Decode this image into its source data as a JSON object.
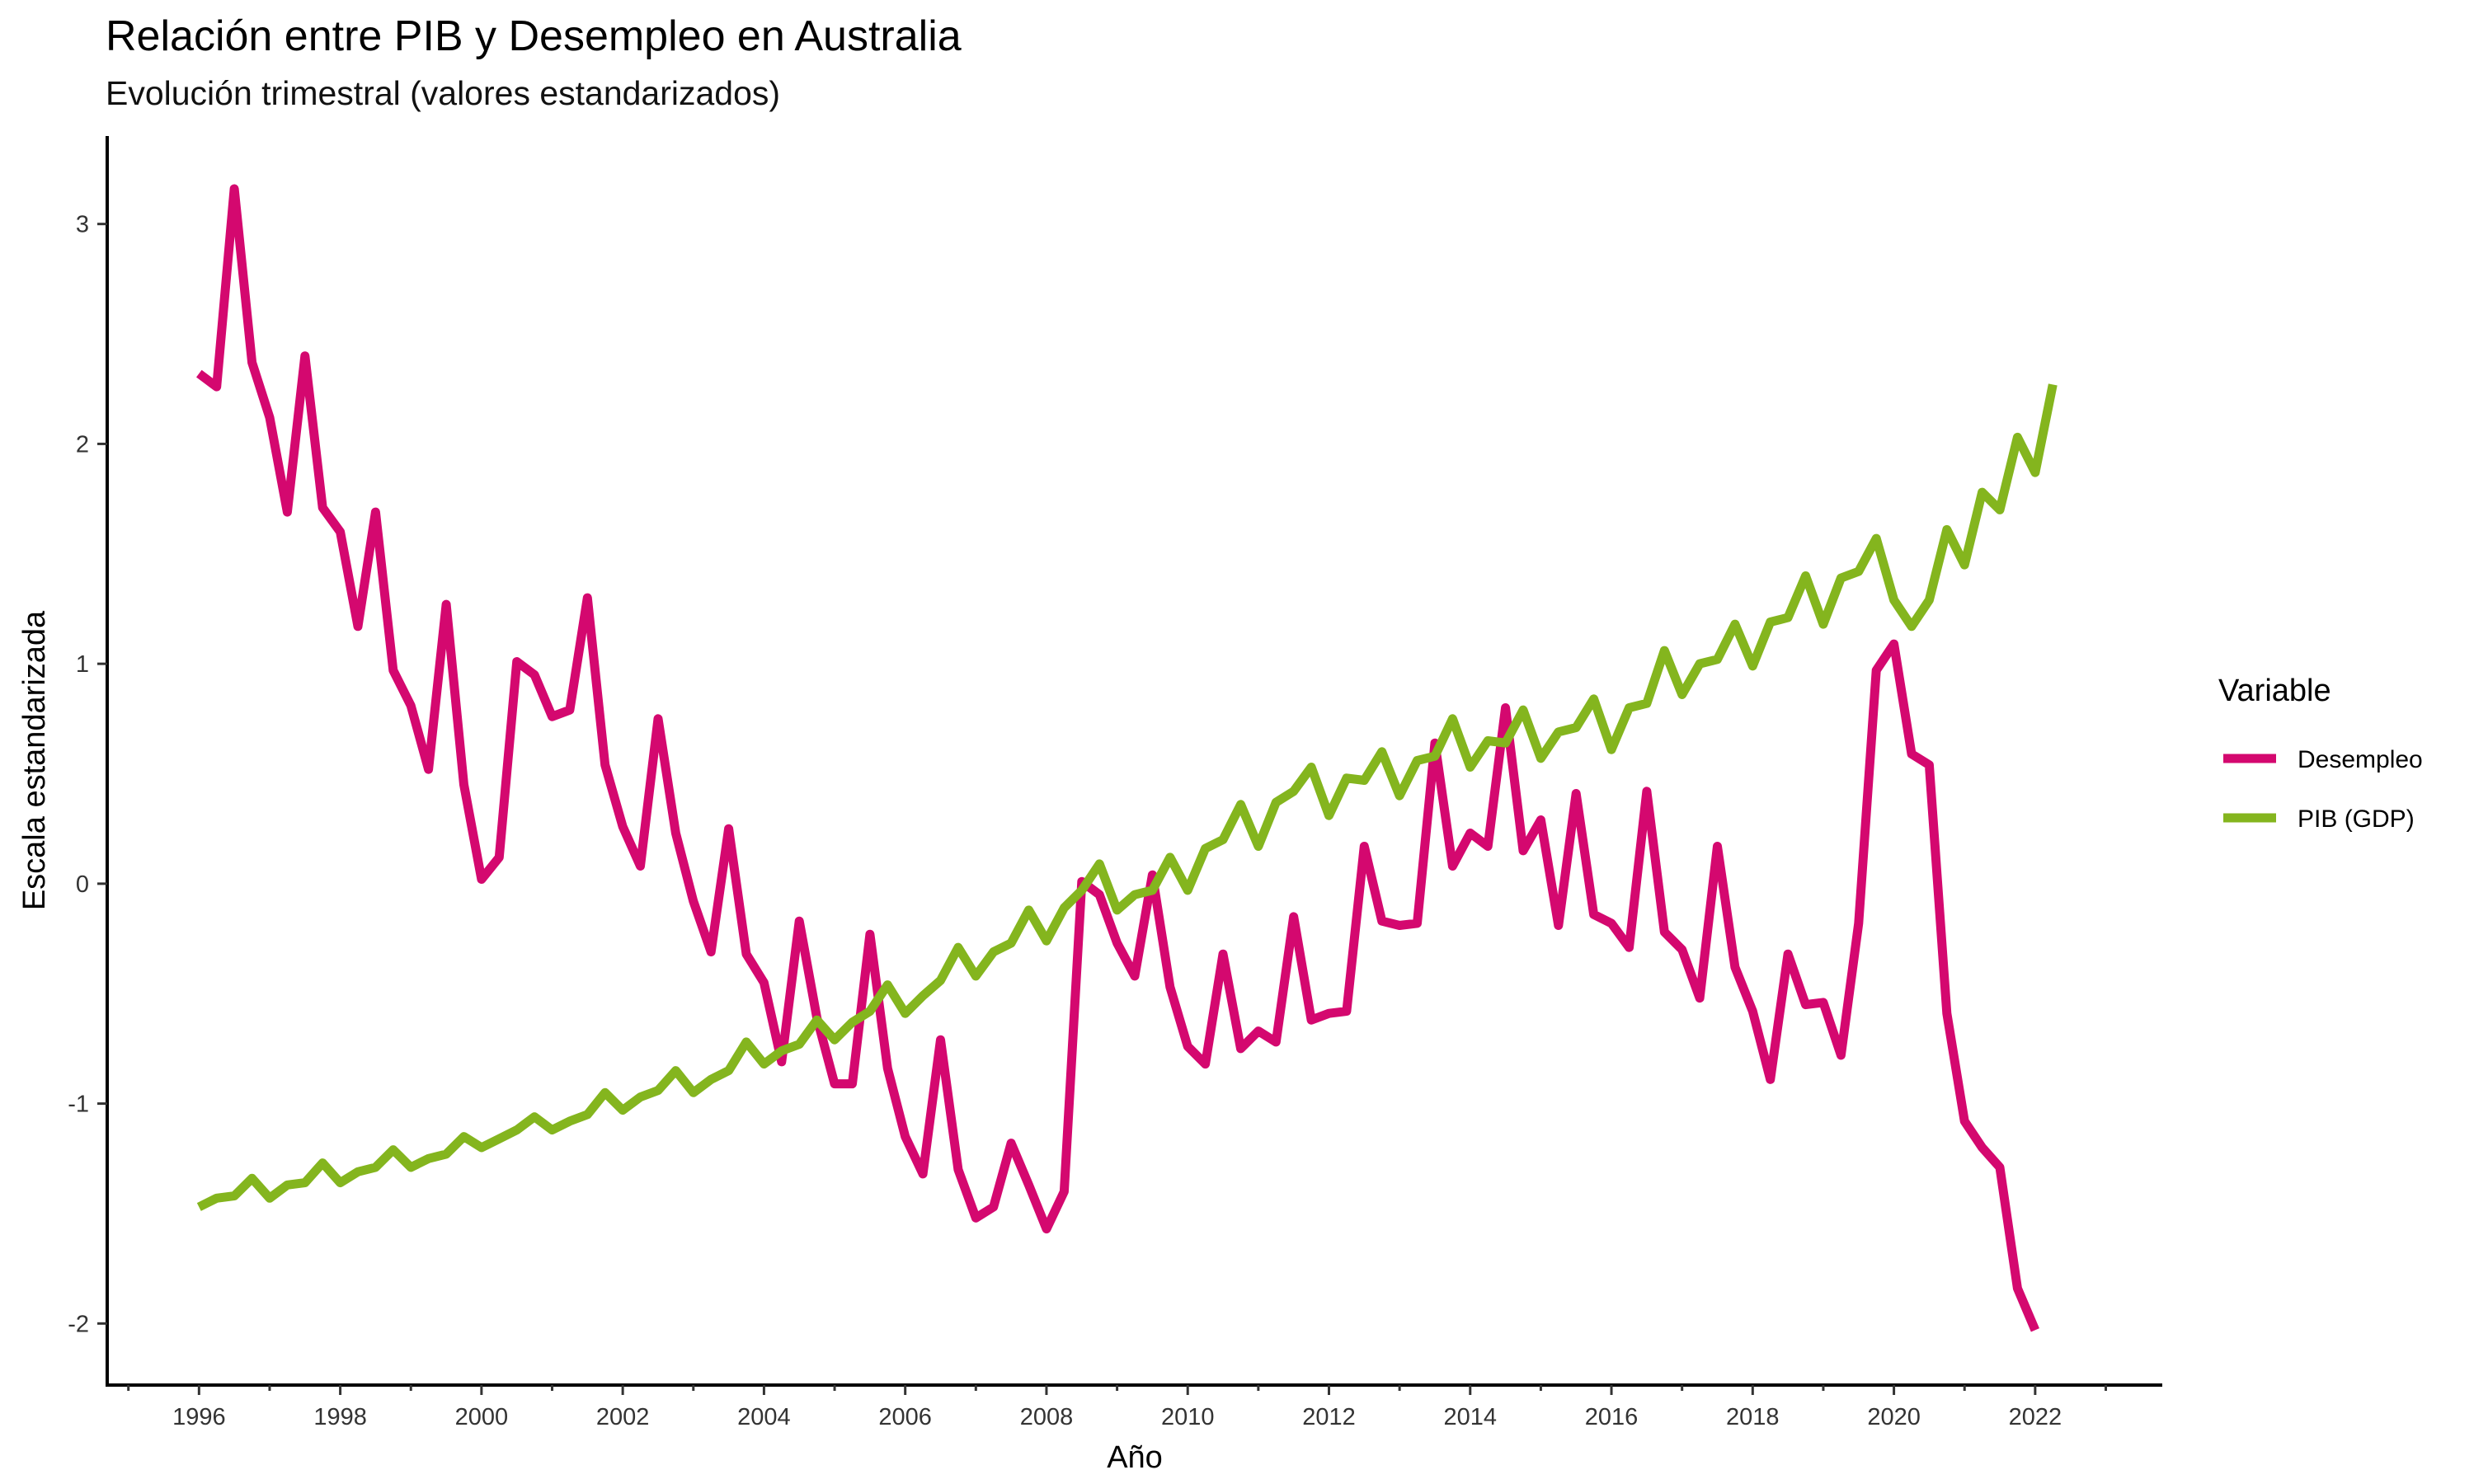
{
  "chart_data": {
    "type": "line",
    "title": "Relación entre PIB y Desempleo en Australia",
    "subtitle": "Evolución trimestral (valores estandarizados)",
    "xlabel": "Año",
    "ylabel": "Escala estandarizada",
    "xlim": [
      1994.7,
      2023.8
    ],
    "ylim": [
      -2.28,
      3.4
    ],
    "x_ticks": [
      1996,
      1998,
      2000,
      2002,
      2004,
      2006,
      2008,
      2010,
      2012,
      2014,
      2016,
      2018,
      2020,
      2022
    ],
    "y_ticks": [
      3,
      2,
      1,
      0,
      -1,
      -2
    ],
    "grid": false,
    "legend": {
      "title": "Variable",
      "position": "right"
    },
    "series": [
      {
        "name": "Desempleo",
        "color": "#d4086f",
        "start_year": 1996,
        "step": 0.25,
        "values": [
          2.32,
          2.26,
          3.16,
          2.37,
          2.12,
          1.69,
          2.4,
          1.71,
          1.6,
          1.17,
          1.69,
          0.97,
          0.81,
          0.52,
          1.27,
          0.45,
          0.02,
          0.12,
          1.01,
          0.95,
          0.76,
          0.79,
          1.3,
          0.54,
          0.26,
          0.08,
          0.75,
          0.23,
          -0.08,
          -0.31,
          0.25,
          -0.32,
          -0.45,
          -0.81,
          -0.17,
          -0.61,
          -0.91,
          -0.91,
          -0.23,
          -0.84,
          -1.15,
          -1.32,
          -0.71,
          -1.3,
          -1.52,
          -1.47,
          -1.18,
          -1.37,
          -1.57,
          -1.4,
          0.01,
          -0.05,
          -0.27,
          -0.42,
          0.04,
          -0.47,
          -0.74,
          -0.82,
          -0.32,
          -0.75,
          -0.67,
          -0.72,
          -0.15,
          -0.62,
          -0.59,
          -0.58,
          0.17,
          -0.17,
          -0.19,
          -0.18,
          0.64,
          0.08,
          0.23,
          0.17,
          0.8,
          0.15,
          0.29,
          -0.19,
          0.41,
          -0.14,
          -0.18,
          -0.29,
          0.42,
          -0.22,
          -0.3,
          -0.52,
          0.17,
          -0.38,
          -0.58,
          -0.89,
          -0.32,
          -0.55,
          -0.54,
          -0.78,
          -0.18,
          0.97,
          1.09,
          0.59,
          0.54,
          -0.59,
          -1.08,
          -1.2,
          -1.29,
          -1.84,
          -2.03
        ]
      },
      {
        "name": "PIB (GDP)",
        "color": "#84b51e",
        "start_year": 1996,
        "step": 0.25,
        "values": [
          -1.47,
          -1.43,
          -1.42,
          -1.34,
          -1.43,
          -1.37,
          -1.36,
          -1.27,
          -1.36,
          -1.31,
          -1.29,
          -1.21,
          -1.29,
          -1.25,
          -1.23,
          -1.15,
          -1.2,
          -1.16,
          -1.12,
          -1.06,
          -1.12,
          -1.08,
          -1.05,
          -0.95,
          -1.03,
          -0.97,
          -0.94,
          -0.85,
          -0.95,
          -0.89,
          -0.85,
          -0.72,
          -0.82,
          -0.76,
          -0.73,
          -0.62,
          -0.71,
          -0.63,
          -0.58,
          -0.46,
          -0.59,
          -0.51,
          -0.44,
          -0.29,
          -0.42,
          -0.31,
          -0.27,
          -0.12,
          -0.26,
          -0.11,
          -0.03,
          0.09,
          -0.12,
          -0.05,
          -0.03,
          0.12,
          -0.03,
          0.16,
          0.2,
          0.36,
          0.17,
          0.37,
          0.42,
          0.53,
          0.31,
          0.48,
          0.47,
          0.6,
          0.4,
          0.56,
          0.58,
          0.75,
          0.53,
          0.65,
          0.64,
          0.79,
          0.57,
          0.69,
          0.71,
          0.84,
          0.61,
          0.8,
          0.82,
          1.06,
          0.86,
          1.0,
          1.02,
          1.18,
          0.99,
          1.19,
          1.21,
          1.4,
          1.18,
          1.39,
          1.42,
          1.57,
          1.29,
          1.17,
          1.29,
          1.61,
          1.45,
          1.78,
          1.7,
          2.03,
          1.87,
          2.27
        ]
      }
    ]
  }
}
